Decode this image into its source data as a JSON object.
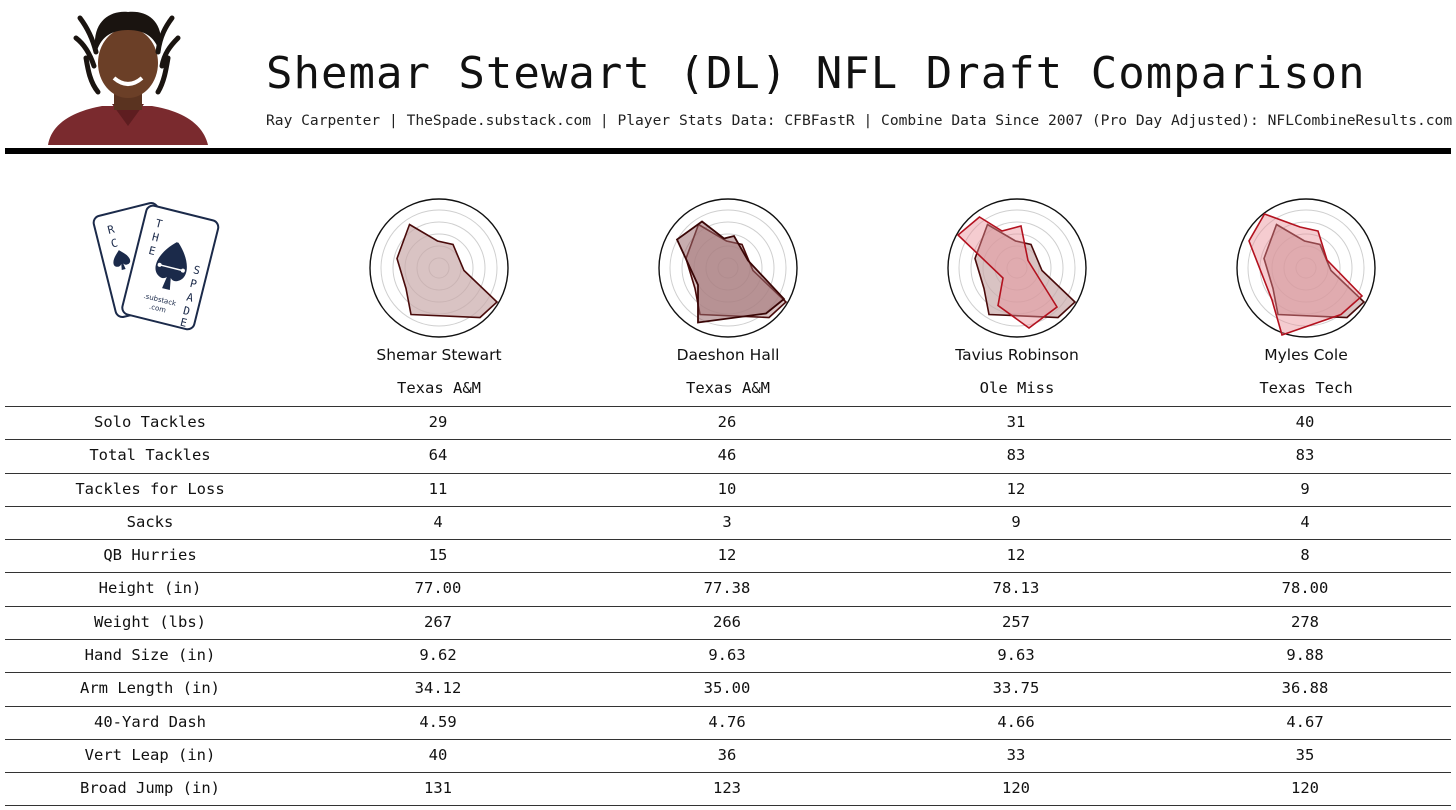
{
  "header": {
    "title": "Shemar Stewart (DL) NFL Draft Comparison",
    "subtitle": "Ray Carpenter | TheSpade.substack.com | Player Stats Data: CFBFastR | Combine Data Since 2007 (Pro Day Adjusted): NFLCombineResults.com"
  },
  "logo": {
    "text_lines": [
      "R",
      "C",
      "T",
      "H",
      "E",
      "S",
      "P",
      "A",
      "D",
      "E",
      ".substack",
      ".com"
    ]
  },
  "colors": {
    "base_fill": "#c9a9a9",
    "base_stroke": "#4a0b0b",
    "compare_fill": "#e88f96",
    "compare_stroke": "#b3121f",
    "logo_navy": "#1b2a4a"
  },
  "players": [
    {
      "name": "Shemar Stewart",
      "school": "Texas A&M"
    },
    {
      "name": "Daeshon Hall",
      "school": "Texas A&M"
    },
    {
      "name": "Tavius Robinson",
      "school": "Ole Miss"
    },
    {
      "name": "Myles Cole",
      "school": "Texas Tech"
    }
  ],
  "stats": {
    "rows": [
      {
        "label": "Solo Tackles",
        "values": [
          "29",
          "26",
          "31",
          "40"
        ]
      },
      {
        "label": "Total Tackles",
        "values": [
          "64",
          "46",
          "83",
          "83"
        ]
      },
      {
        "label": "Tackles for Loss",
        "values": [
          "11",
          "10",
          "12",
          "9"
        ]
      },
      {
        "label": "Sacks",
        "values": [
          "4",
          "3",
          "9",
          "4"
        ]
      },
      {
        "label": "QB Hurries",
        "values": [
          "15",
          "12",
          "12",
          "8"
        ]
      },
      {
        "label": "Height (in)",
        "values": [
          "77.00",
          "77.38",
          "78.13",
          "78.00"
        ]
      },
      {
        "label": "Weight (lbs)",
        "values": [
          "267",
          "266",
          "257",
          "278"
        ]
      },
      {
        "label": "Hand Size (in)",
        "values": [
          "9.62",
          "9.63",
          "9.63",
          "9.88"
        ]
      },
      {
        "label": "Arm Length (in)",
        "values": [
          "34.12",
          "35.00",
          "33.75",
          "36.88"
        ]
      },
      {
        "label": "40-Yard Dash",
        "values": [
          "4.59",
          "4.76",
          "4.66",
          "4.67"
        ]
      },
      {
        "label": "Vert Leap (in)",
        "values": [
          "40",
          "36",
          "33",
          "35"
        ]
      },
      {
        "label": "Broad Jump (in)",
        "values": [
          "131",
          "123",
          "120",
          "120"
        ]
      }
    ]
  }
}
